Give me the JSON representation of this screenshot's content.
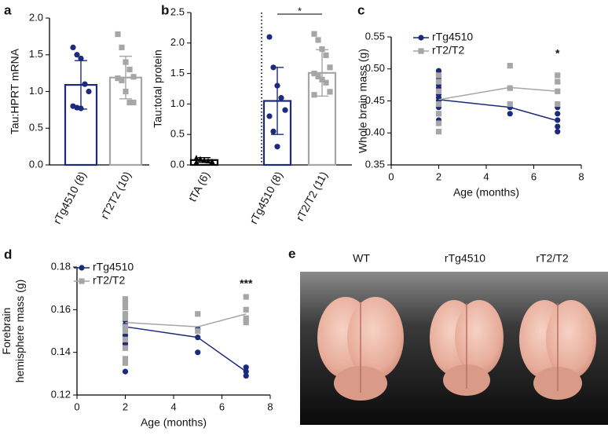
{
  "chart_data": [
    {
      "type": "bar",
      "panel": "a",
      "ylabel": "Tau:HPRT mRNA",
      "categories": [
        "rTg4510 (8)",
        "rT2T2 (10)"
      ],
      "values": [
        1.09,
        1.19
      ],
      "errors": [
        0.33,
        0.29
      ],
      "points": [
        [
          1.6,
          1.5,
          1.45,
          1.1,
          1.0,
          0.8,
          0.78,
          0.77
        ],
        [
          1.78,
          1.6,
          1.4,
          1.3,
          1.2,
          1.18,
          1.15,
          1.0,
          0.85,
          0.85
        ]
      ],
      "colors": [
        "#1b2a7a",
        "#a6a6a6"
      ],
      "markers": [
        "circle",
        "square"
      ],
      "ylim": [
        0,
        2
      ],
      "yticks": [
        {
          "value": 0,
          "label": "0.0"
        },
        0.5,
        {
          "value": 1,
          "label": "1.0"
        },
        1.5,
        {
          "value": 2,
          "label": "2.0"
        }
      ]
    },
    {
      "type": "bar",
      "panel": "b",
      "ylabel": "Tau:total protein",
      "categories": [
        "tTA (6)",
        "rTg4510 (8)",
        "rT2/T2 (11)"
      ],
      "values": [
        0.08,
        1.05,
        1.51
      ],
      "errors": [
        0.04,
        0.55,
        0.38
      ],
      "points": [
        [
          0.12,
          0.1,
          0.08,
          0.07,
          0.06,
          0.05
        ],
        [
          2.1,
          1.6,
          1.3,
          1.1,
          0.9,
          0.8,
          0.55,
          0.3
        ],
        [
          2.15,
          2.05,
          1.9,
          1.8,
          1.6,
          1.5,
          1.45,
          1.4,
          1.35,
          1.2,
          1.15
        ]
      ],
      "colors": [
        "#000000",
        "#1b2a7a",
        "#a6a6a6"
      ],
      "markers": [
        "triangle",
        "circle",
        "square"
      ],
      "separator_after": 0,
      "annotation": {
        "text": "*",
        "between": [
          1,
          2
        ]
      },
      "ylim": [
        0,
        2.5
      ],
      "yticks": [
        {
          "value": 0,
          "label": "0.0"
        },
        0.5,
        {
          "value": 1,
          "label": "1.0"
        },
        1.5,
        {
          "value": 2,
          "label": "2.0"
        },
        2.5
      ]
    },
    {
      "type": "line",
      "panel": "c",
      "xlabel": "Age (months)",
      "ylabel": "Whole brain mass (g)",
      "x": [
        2,
        5,
        7
      ],
      "legend": "upper left",
      "series": [
        {
          "name": "rTg4510",
          "color": "#1b2a7a",
          "marker": "circle",
          "values": [
            0.452,
            0.44,
            0.419
          ],
          "points": {
            "x": [
              2,
              2,
              2,
              2,
              2,
              2,
              2,
              2,
              2,
              2,
              2,
              5,
              5,
              7,
              7,
              7,
              7,
              7
            ],
            "y": [
              0.497,
              0.485,
              0.475,
              0.47,
              0.46,
              0.455,
              0.45,
              0.44,
              0.43,
              0.42,
              0.415,
              0.44,
              0.43,
              0.44,
              0.43,
              0.42,
              0.41,
              0.402
            ]
          }
        },
        {
          "name": "rT2/T2",
          "color": "#a6a6a6",
          "marker": "square",
          "values": [
            0.452,
            0.471,
            0.465
          ],
          "points": {
            "x": [
              2,
              2,
              2,
              2,
              2,
              2,
              2,
              5,
              5,
              5,
              7,
              7,
              7,
              7
            ],
            "y": [
              0.49,
              0.48,
              0.465,
              0.445,
              0.43,
              0.415,
              0.402,
              0.505,
              0.47,
              0.445,
              0.49,
              0.48,
              0.465,
              0.445
            ]
          }
        }
      ],
      "annotation": {
        "text": "*",
        "x": 7
      },
      "xlim": [
        0,
        8
      ],
      "xticks": [
        0,
        2,
        4,
        6,
        8
      ],
      "ylim": [
        0.35,
        0.55
      ],
      "yticks": [
        0.35,
        {
          "value": 0.4,
          "label": "0.40"
        },
        0.45,
        {
          "value": 0.5,
          "label": "0.50"
        },
        0.55
      ]
    },
    {
      "type": "line",
      "panel": "d",
      "xlabel": "Age (months)",
      "ylabel": [
        "Forebrain",
        "hemisphere mass (g)"
      ],
      "x": [
        2,
        5,
        7
      ],
      "legend": "upper left",
      "series": [
        {
          "name": "rTg4510",
          "color": "#1b2a7a",
          "marker": "circle",
          "values": [
            0.152,
            0.147,
            0.131
          ],
          "points": {
            "x": [
              2,
              2,
              2,
              2,
              2,
              2,
              2,
              2,
              2,
              5,
              5,
              5,
              7,
              7,
              7
            ],
            "y": [
              0.158,
              0.155,
              0.153,
              0.152,
              0.15,
              0.148,
              0.146,
              0.144,
              0.131,
              0.151,
              0.147,
              0.14,
              0.133,
              0.131,
              0.129
            ]
          }
        },
        {
          "name": "rT2/T2",
          "color": "#a6a6a6",
          "marker": "square",
          "values": [
            0.154,
            0.152,
            0.158
          ],
          "points": {
            "x": [
              2,
              2,
              2,
              2,
              2,
              2,
              2,
              2,
              2,
              2,
              2,
              5,
              5,
              7,
              7,
              7,
              7
            ],
            "y": [
              0.165,
              0.163,
              0.161,
              0.158,
              0.156,
              0.152,
              0.15,
              0.146,
              0.142,
              0.137,
              0.135,
              0.158,
              0.15,
              0.166,
              0.16,
              0.156,
              0.154
            ]
          }
        }
      ],
      "annotation": {
        "text": "***",
        "x": 7
      },
      "xlim": [
        0,
        8
      ],
      "xticks": [
        0,
        2,
        4,
        6,
        8
      ],
      "ylim": [
        0.12,
        0.18
      ],
      "yticks": [
        0.12,
        0.14,
        0.16,
        0.18
      ]
    }
  ],
  "photo": {
    "panel": "e",
    "labels": [
      "WT",
      "rTg4510",
      "rT2/T2"
    ]
  }
}
